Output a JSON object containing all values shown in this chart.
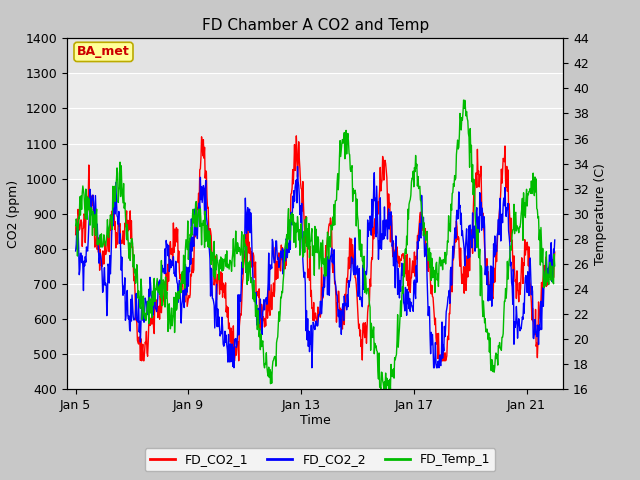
{
  "title": "FD Chamber A CO2 and Temp",
  "xlabel": "Time",
  "ylabel_left": "CO2 (ppm)",
  "ylabel_right": "Temperature (C)",
  "ylim_left": [
    400,
    1400
  ],
  "ylim_right": [
    16,
    44
  ],
  "yticks_left": [
    400,
    500,
    600,
    700,
    800,
    900,
    1000,
    1100,
    1200,
    1300,
    1400
  ],
  "yticks_right": [
    16,
    18,
    20,
    22,
    24,
    26,
    28,
    30,
    32,
    34,
    36,
    38,
    40,
    42,
    44
  ],
  "xtick_labels": [
    "Jan 5",
    "Jan 9",
    "Jan 13",
    "Jan 17",
    "Jan 21"
  ],
  "xtick_positions": [
    0,
    4,
    8,
    12,
    16
  ],
  "xlim": [
    -0.3,
    17.3
  ],
  "legend_labels": [
    "FD_CO2_1",
    "FD_CO2_2",
    "FD_Temp_1"
  ],
  "legend_colors": [
    "#ff0000",
    "#0000ff",
    "#00bb00"
  ],
  "annotation_text": "BA_met",
  "annotation_color": "#cc0000",
  "annotation_bg": "#ffff99",
  "annotation_border": "#bbaa00",
  "fig_bg": "#c8c8c8",
  "plot_bg": "#ebebeb",
  "title_fontsize": 11,
  "axis_label_fontsize": 9,
  "tick_fontsize": 9,
  "legend_fontsize": 9,
  "annot_fontsize": 9,
  "linewidth": 1.0
}
